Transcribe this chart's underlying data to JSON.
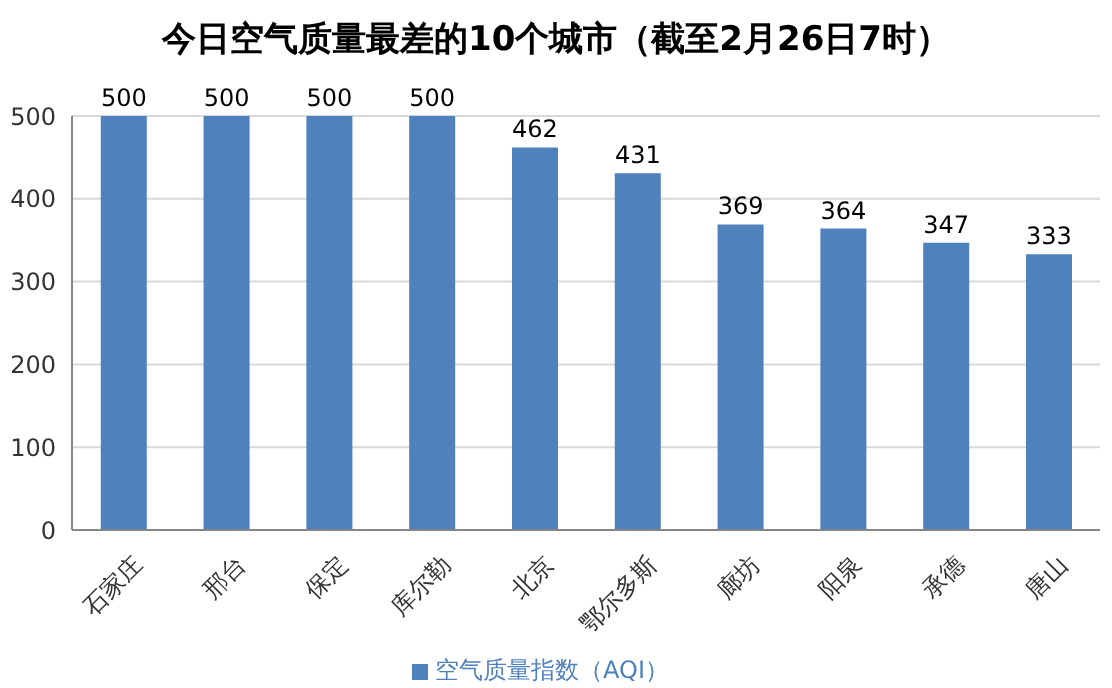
{
  "chart_data": {
    "type": "bar",
    "title": "今日空气质量最差的10个城市（截至2月26日7时）",
    "categories": [
      "石家庄",
      "邢台",
      "保定",
      "库尔勒",
      "北京",
      "鄂尔多斯",
      "廊坊",
      "阳泉",
      "承德",
      "唐山"
    ],
    "series": [
      {
        "name": "空气质量指数（AQI）",
        "color": "#4f81bd",
        "values": [
          500,
          500,
          500,
          500,
          462,
          431,
          369,
          364,
          347,
          333
        ]
      }
    ],
    "ylim": [
      0,
      500
    ],
    "yticks": [
      0,
      100,
      200,
      300,
      400,
      500
    ],
    "grid": "y",
    "legend": "bottom",
    "data_labels": true
  }
}
